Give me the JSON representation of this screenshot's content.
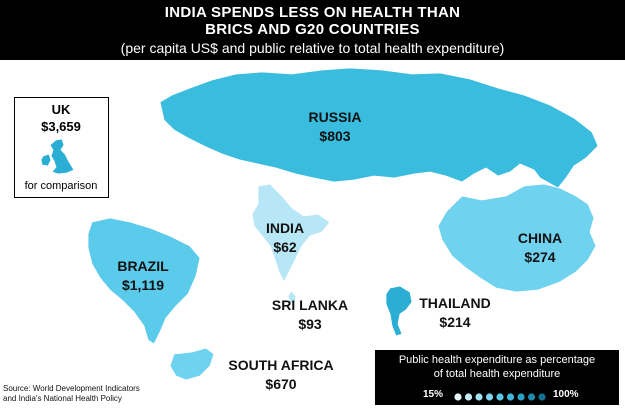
{
  "header": {
    "title_line1": "INDIA SPENDS LESS ON HEALTH THAN",
    "title_line2": "BRICS AND G20 COUNTRIES",
    "subtitle": "(per capita US$ and public relative to total health expenditure)"
  },
  "colors": {
    "russia": "#39bcdd",
    "brazil": "#5acbea",
    "india": "#b7e7f6",
    "china": "#6fd2ee",
    "thailand": "#2aaed3",
    "south_africa": "#6fd2ee",
    "uk": "#2aaed3",
    "legend_dots": [
      "#e6f7fc",
      "#c5ecf8",
      "#a2e0f3",
      "#7fd3ee",
      "#5cc6e8",
      "#3fb6dc",
      "#2aa2c7",
      "#1e8aad",
      "#157093"
    ]
  },
  "countries": [
    {
      "key": "russia",
      "name": "RUSSIA",
      "value": "$803"
    },
    {
      "key": "india",
      "name": "INDIA",
      "value": "$62"
    },
    {
      "key": "china",
      "name": "CHINA",
      "value": "$274"
    },
    {
      "key": "brazil",
      "name": "BRAZIL",
      "value": "$1,119"
    },
    {
      "key": "sri_lanka",
      "name": "SRI LANKA",
      "value": "$93"
    },
    {
      "key": "thailand",
      "name": "THAILAND",
      "value": "$214"
    },
    {
      "key": "south_africa",
      "name": "SOUTH AFRICA",
      "value": "$670"
    }
  ],
  "uk": {
    "name": "UK",
    "value": "$3,659",
    "note": "for comparison"
  },
  "source": {
    "line1": "Source: World Development Indicators",
    "line2": "and India's National Health Policy"
  },
  "legend": {
    "title_line1": "Public health expenditure as percentage",
    "title_line2": "of total health expenditure",
    "min_label": "15%",
    "max_label": "100%"
  }
}
